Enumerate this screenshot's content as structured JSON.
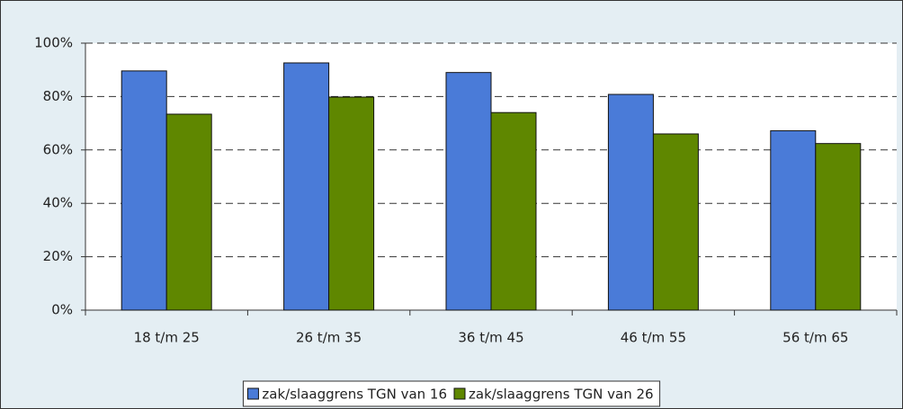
{
  "chart_data": {
    "type": "bar",
    "categories": [
      "18 t/m 25",
      "26 t/m 35",
      "36 t/m 45",
      "46 t/m 55",
      "56 t/m 65"
    ],
    "series": [
      {
        "name": "zak/slaaggrens TGN van 16",
        "color": "#4a7bd8",
        "values": [
          89.6,
          92.6,
          89,
          80.8,
          67.2
        ]
      },
      {
        "name": "zak/slaaggrens TGN van 26",
        "color": "#5f8700",
        "values": [
          73.4,
          79.8,
          74,
          66,
          62.4
        ]
      }
    ],
    "ylim": [
      0,
      100
    ],
    "yticks": [
      {
        "value": 0,
        "label": "0%"
      },
      {
        "value": 20,
        "label": "20%"
      },
      {
        "value": 40,
        "label": "40%"
      },
      {
        "value": 60,
        "label": "60%"
      },
      {
        "value": 80,
        "label": "80%"
      },
      {
        "value": 100,
        "label": "100%"
      }
    ],
    "grid": true,
    "legend": "bottom"
  }
}
